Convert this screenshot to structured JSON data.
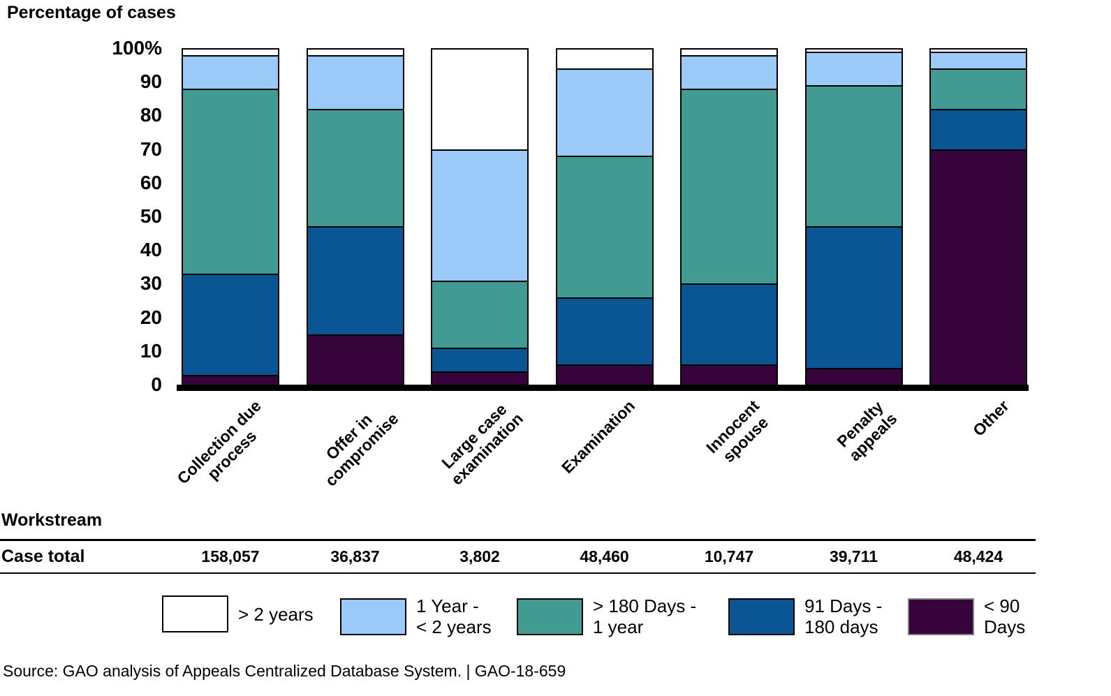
{
  "title": "Percentage of cases",
  "labels": {
    "workstream": "Workstream",
    "case_total": "Case total"
  },
  "source_line": "Source: GAO analysis of Appeals Centralized Database System.  |  GAO-18-659",
  "colors": {
    "white": "#FFFFFF",
    "lightblue": "#9CCAF8",
    "teal": "#429B93",
    "darkblue": "#0A5694",
    "purple": "#36033A"
  },
  "y_axis": {
    "ticks": [
      "100%",
      "90",
      "80",
      "70",
      "60",
      "50",
      "40",
      "30",
      "20",
      "10",
      "0"
    ]
  },
  "chart_data": {
    "type": "bar",
    "subtype": "100pct-stacked-vertical",
    "title": "Percentage of cases",
    "xlabel": "Workstream",
    "ylabel": "Percentage of cases",
    "ylim": [
      0,
      100
    ],
    "grid": false,
    "legend_position": "bottom",
    "categories": [
      "Collection due\nprocess",
      "Offer in\ncompromise",
      "Large case\nexamination",
      "Examination",
      "Innocent\nspouse",
      "Penalty\nappeals",
      "Other"
    ],
    "case_totals": [
      "158,057",
      "36,837",
      "3,802",
      "48,460",
      "10,747",
      "39,711",
      "48,424"
    ],
    "series": [
      {
        "name": "< 90 Days",
        "display_label": "< 90\nDays",
        "color_key": "purple",
        "values": [
          3,
          15,
          4,
          6,
          6,
          5,
          70
        ]
      },
      {
        "name": "91 Days - 180 days",
        "display_label": "91 Days -\n180 days",
        "color_key": "darkblue",
        "values": [
          30,
          32,
          7,
          20,
          24,
          42,
          12
        ]
      },
      {
        "name": "> 180 Days - 1 year",
        "display_label": "> 180 Days -\n1 year",
        "color_key": "teal",
        "values": [
          55,
          35,
          20,
          42,
          58,
          42,
          12
        ]
      },
      {
        "name": "1 Year - < 2 years",
        "display_label": "1 Year -\n< 2 years",
        "color_key": "lightblue",
        "values": [
          10,
          16,
          39,
          26,
          10,
          10,
          5
        ]
      },
      {
        "name": "> 2 years",
        "display_label": "> 2 years",
        "color_key": "white",
        "values": [
          2,
          2,
          30,
          6,
          2,
          1,
          1
        ]
      }
    ]
  }
}
